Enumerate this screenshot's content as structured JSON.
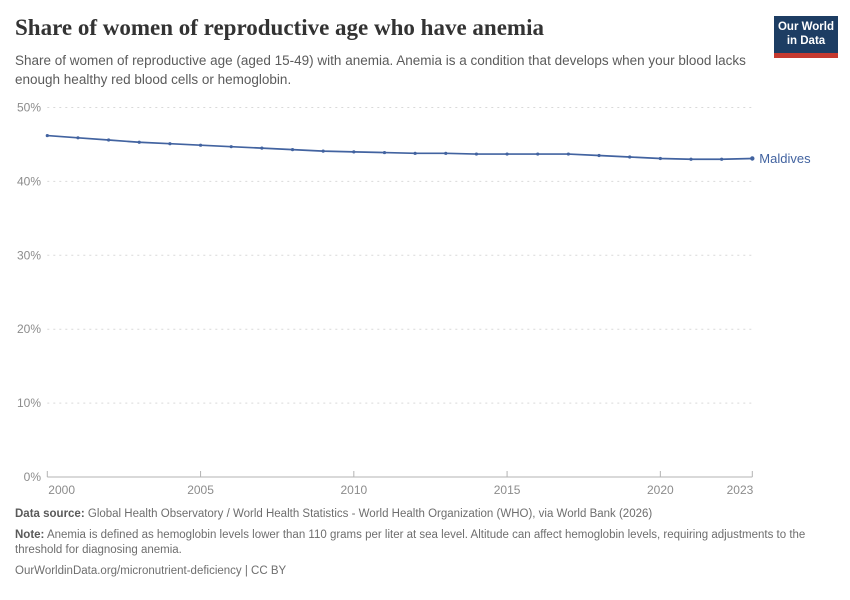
{
  "header": {
    "title": "Share of women of reproductive age who have anemia",
    "subtitle": "Share of women of reproductive age (aged 15-49) with anemia. Anemia is a condition that develops when your blood lacks enough healthy red blood cells or hemoglobin.",
    "logo": {
      "line1": "Our World",
      "line2": "in Data"
    }
  },
  "chart_data": {
    "type": "line",
    "title": "Share of women of reproductive age who have anemia",
    "entity_label": "Maldives",
    "unit": "%",
    "x": [
      2000,
      2001,
      2002,
      2003,
      2004,
      2005,
      2006,
      2007,
      2008,
      2009,
      2010,
      2011,
      2012,
      2013,
      2014,
      2015,
      2016,
      2017,
      2018,
      2019,
      2020,
      2021,
      2022,
      2023
    ],
    "values": [
      46.2,
      45.9,
      45.6,
      45.3,
      45.1,
      44.9,
      44.7,
      44.5,
      44.3,
      44.1,
      44.0,
      43.9,
      43.8,
      43.8,
      43.7,
      43.7,
      43.7,
      43.7,
      43.5,
      43.3,
      43.1,
      43.0,
      43.0,
      43.1
    ],
    "ylim": [
      0,
      50
    ],
    "yticks": [
      0,
      10,
      20,
      30,
      40,
      50
    ],
    "ytick_labels": [
      "0%",
      "10%",
      "20%",
      "30%",
      "40%",
      "50%"
    ],
    "xticks": [
      2000,
      2005,
      2010,
      2015,
      2020,
      2023
    ],
    "xtick_labels": [
      "2000",
      "2005",
      "2010",
      "2015",
      "2020",
      "2023"
    ],
    "grid": "horizontal-dashed",
    "legend_position": "end-of-line",
    "line_color": "#4263a0"
  },
  "colors": {
    "line": "#4263a0",
    "logo_navy": "#1d3d63",
    "logo_red": "#c5392f",
    "grid": "#d9d9d9",
    "axis": "#b3b3b3"
  },
  "footer": {
    "source_label": "Data source:",
    "source_text": "Global Health Observatory / World Health Statistics - World Health Organization (WHO), via World Bank (2026)",
    "note_label": "Note:",
    "note_text": "Anemia is defined as hemoglobin levels lower than 110 grams per liter at sea level. Altitude can affect hemoglobin levels, requiring adjustments to the threshold for diagnosing anemia.",
    "url_text": "OurWorldinData.org/micronutrient-deficiency | CC BY"
  }
}
